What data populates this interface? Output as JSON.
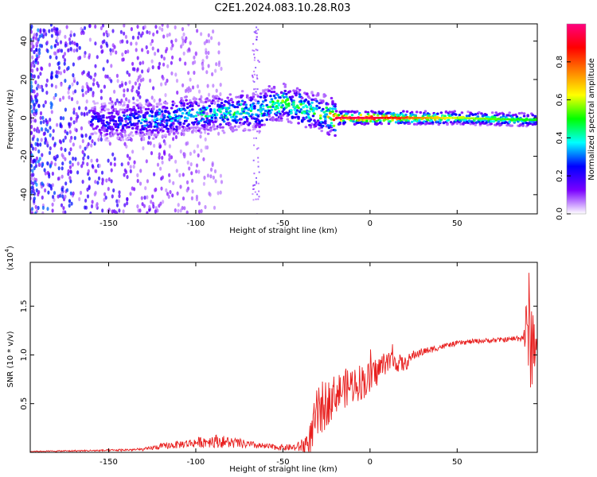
{
  "title": "C2E1.2024.083.10.28.R03",
  "chart_data": [
    {
      "type": "heatmap",
      "xlabel": "Height of straight line (km)",
      "ylabel": "Frequency (Hz)",
      "xlim": [
        -195,
        96
      ],
      "ylim": [
        -50,
        49
      ],
      "x_ticks": [
        -150,
        -100,
        -50,
        0,
        50
      ],
      "y_ticks": [
        -40,
        -20,
        0,
        20,
        40
      ],
      "colorbar": {
        "label": "Normalized spectral amplitude",
        "range": [
          0,
          1
        ],
        "ticks": [
          "0.0",
          "0.2",
          "0.4",
          "0.6",
          "0.8"
        ],
        "stops": [
          "#ffffff",
          "#7a00ff",
          "#0000ff",
          "#00ffff",
          "#00ff00",
          "#ffff00",
          "#ff8000",
          "#ff0000",
          "#ff0080"
        ]
      },
      "ridge": {
        "x": [
          -150,
          -130,
          -110,
          -90,
          -75,
          -65,
          -55,
          -45,
          -35,
          -25,
          -20,
          0,
          50,
          90
        ],
        "frequency": [
          -2,
          -1,
          1,
          2,
          4,
          3,
          8,
          7,
          4,
          2,
          0,
          0,
          0,
          -1
        ],
        "amplitude": [
          0.25,
          0.35,
          0.4,
          0.42,
          0.45,
          0.4,
          0.55,
          0.5,
          0.5,
          0.55,
          0.95,
          0.95,
          0.6,
          0.5
        ]
      }
    },
    {
      "type": "line",
      "xlabel": "Height of straight line (km)",
      "ylabel": "SNR (10 * v/v)",
      "y_multiplier": "(x10",
      "y_multiplier_exp": "4",
      "y_multiplier_close": ")",
      "xlim": [
        -195,
        96
      ],
      "ylim": [
        0,
        1.95
      ],
      "x_ticks": [
        -150,
        -100,
        -50,
        0,
        50
      ],
      "y_ticks": [
        "0.5",
        "1.0",
        "1.5"
      ],
      "color": "#e8201f",
      "envelope": {
        "x": [
          -195,
          -150,
          -130,
          -120,
          -100,
          -90,
          -80,
          -70,
          -60,
          -50,
          -42,
          -35,
          -30,
          -20,
          -10,
          0,
          5,
          10,
          20,
          25,
          30,
          40,
          50,
          60,
          70,
          80,
          88,
          91,
          93,
          96
        ],
        "y": [
          0.01,
          0.02,
          0.03,
          0.06,
          0.1,
          0.12,
          0.1,
          0.08,
          0.06,
          0.05,
          0.05,
          0.1,
          0.4,
          0.6,
          0.7,
          0.75,
          0.85,
          0.95,
          0.9,
          1.0,
          1.03,
          1.08,
          1.12,
          1.14,
          1.15,
          1.16,
          1.18,
          1.3,
          1.1,
          1.15
        ],
        "noise": [
          0.005,
          0.01,
          0.015,
          0.03,
          0.05,
          0.07,
          0.06,
          0.04,
          0.03,
          0.03,
          0.04,
          0.15,
          0.3,
          0.2,
          0.2,
          0.18,
          0.15,
          0.12,
          0.08,
          0.05,
          0.04,
          0.03,
          0.025,
          0.025,
          0.025,
          0.025,
          0.04,
          0.6,
          0.5,
          0.05
        ]
      }
    }
  ]
}
